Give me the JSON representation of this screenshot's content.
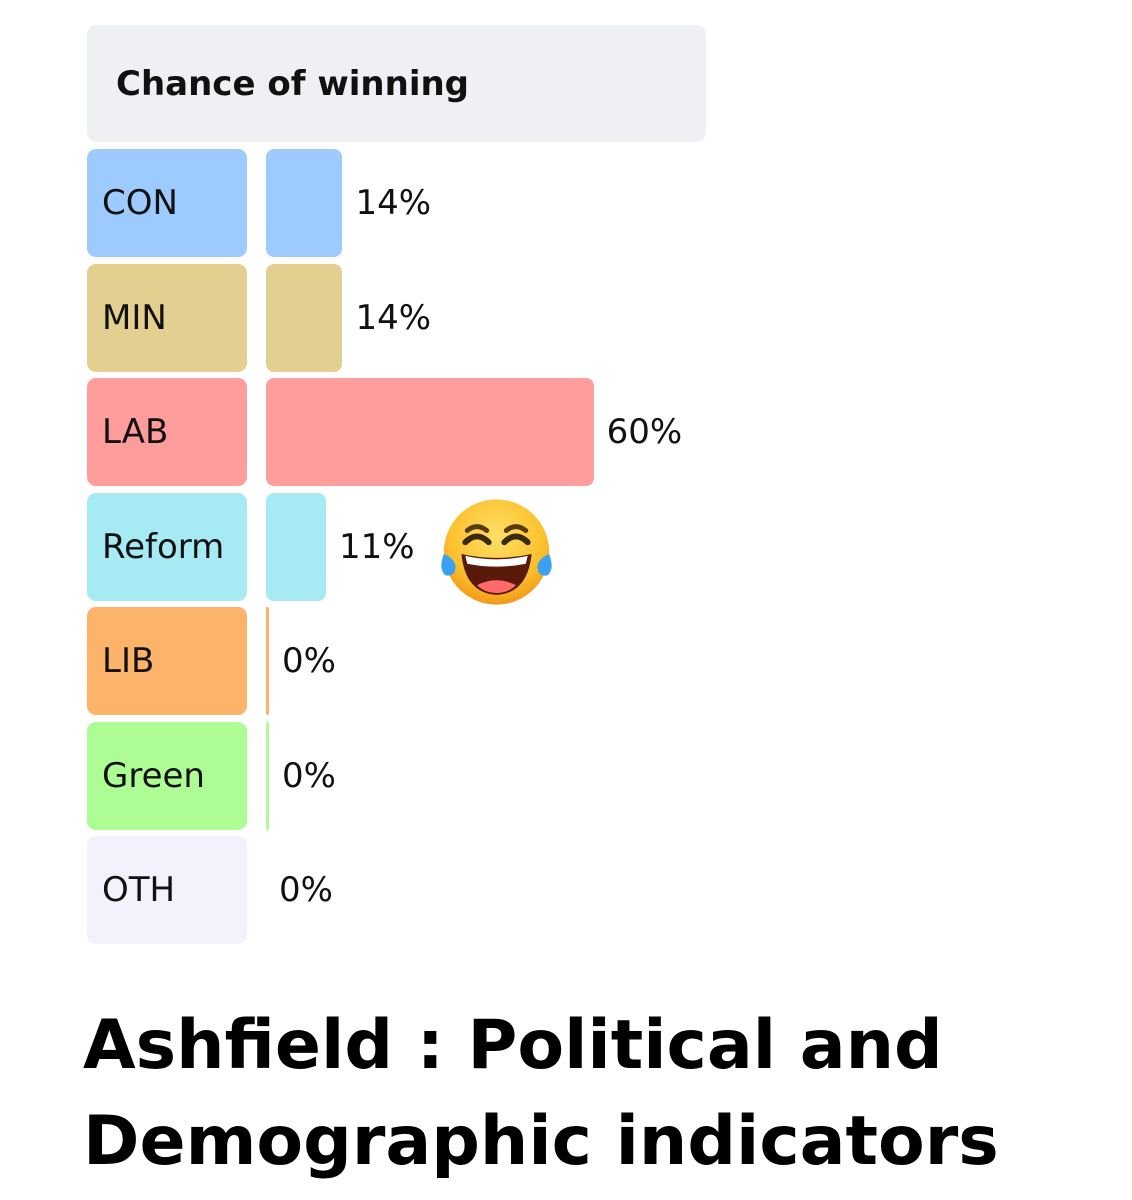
{
  "chart_data": {
    "type": "bar",
    "orientation": "horizontal",
    "title": "Chance of winning",
    "categories": [
      "CON",
      "MIN",
      "LAB",
      "Reform",
      "LIB",
      "Green",
      "OTH"
    ],
    "values": [
      14,
      14,
      60,
      11,
      0,
      0,
      0
    ],
    "value_labels": [
      "14%",
      "14%",
      "60%",
      "11%",
      "0%",
      "0%",
      "0%"
    ],
    "colors": [
      "#9ecbff",
      "#e3cf8f",
      "#ff9c9c",
      "#a6eaf3",
      "#fdb46a",
      "#adfd94",
      "#f4f1fc"
    ],
    "xlim": [
      0,
      100
    ],
    "grid": false,
    "legend": "none"
  },
  "annotation": {
    "icon": "face-with-tears-of-joy-icon"
  },
  "heading": "Ashfield : Political and Demographic indicators"
}
